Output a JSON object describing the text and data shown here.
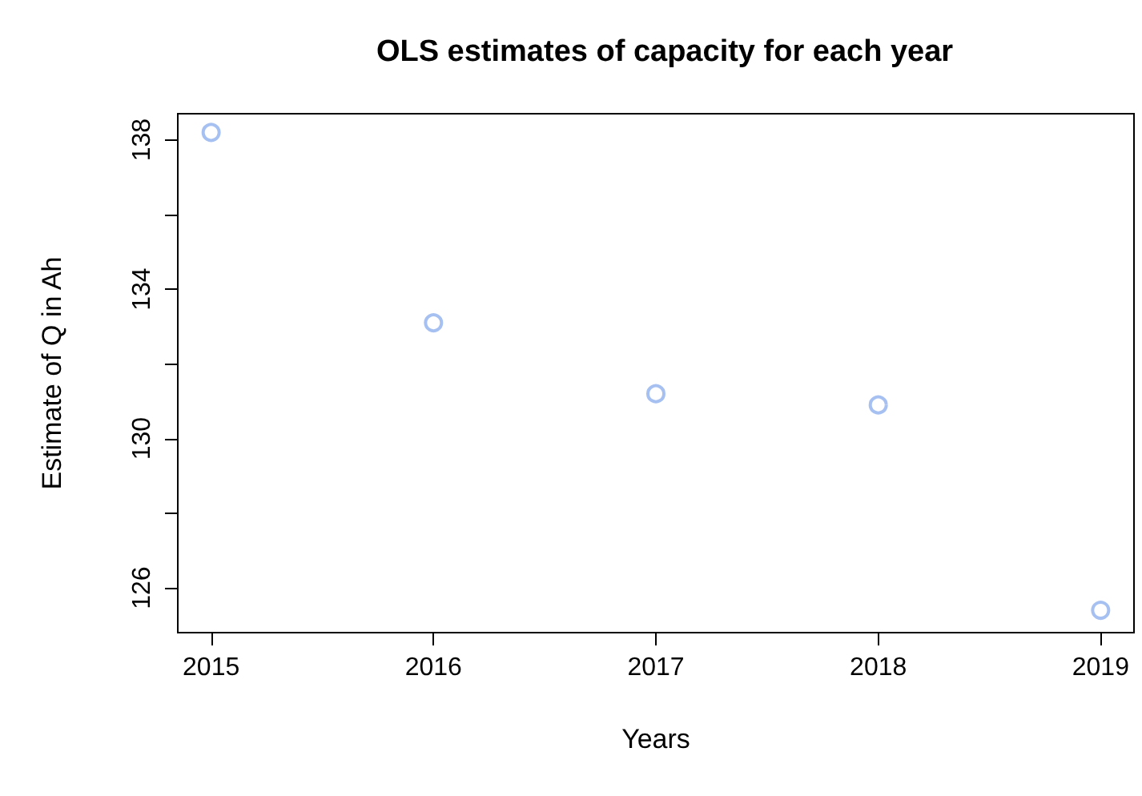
{
  "chart_data": {
    "type": "scatter",
    "title": "OLS estimates of capacity for each year",
    "xlabel": "Years",
    "ylabel": "Estimate of Q in Ah",
    "x": [
      2015,
      2016,
      2017,
      2018,
      2019
    ],
    "series": [
      {
        "color": "#8fb0ee",
        "values": [
          138.2,
          133.1,
          131.2,
          130.9,
          125.4
        ]
      }
    ],
    "xlim": [
      2014.85,
      2019.15
    ],
    "xticks": [
      2015,
      2016,
      2017,
      2018,
      2019
    ],
    "ylim": [
      124.8,
      138.7
    ],
    "yticks": [
      126,
      {
        "value": 128,
        "label": null
      },
      130,
      {
        "value": 132,
        "label": null
      },
      134,
      {
        "value": 136,
        "label": null
      },
      138
    ],
    "marker": "circle",
    "grid": false
  }
}
